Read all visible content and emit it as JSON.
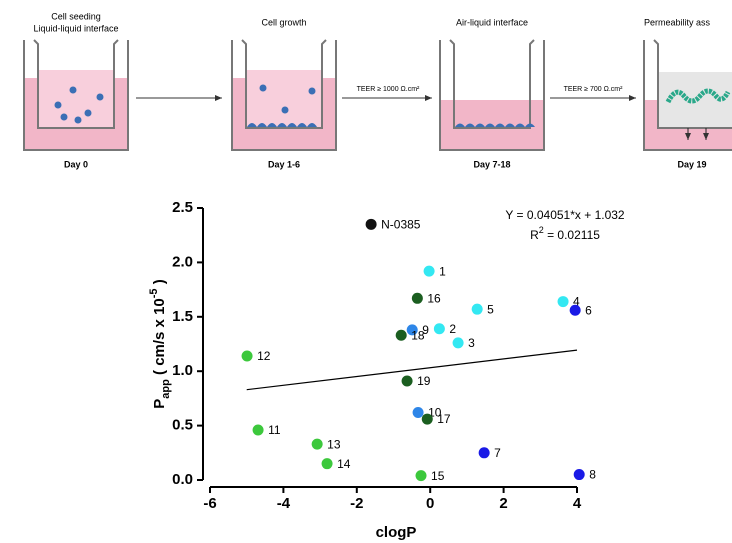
{
  "diagram": {
    "steps": [
      {
        "title": [
          "Cell seeding",
          "Liquid-liquid interface"
        ],
        "day": "Day 0"
      },
      {
        "title": [
          "Cell growth"
        ],
        "day": "Day 1-6"
      },
      {
        "title": [
          "Air-liquid interface"
        ],
        "day": "Day 7-18"
      },
      {
        "title": [
          "Permeability ass"
        ],
        "day": "Day 19"
      }
    ],
    "transitions": [
      "TEER ≥ 1000 Ω.cm²",
      "TEER ≥ 700 Ω.cm²"
    ]
  },
  "chart_data": {
    "type": "scatter",
    "xlabel": "clogP",
    "ylabel": {
      "main": "P",
      "sub": "app",
      "middle": " ( cm/s x 10",
      "sup": "-5",
      "end": " )"
    },
    "annotations": {
      "equation": "Y = 0.04051*x + 1.032",
      "r2": {
        "main": "R",
        "sup": "2",
        "end": " = 0.02115"
      }
    },
    "point_labels": [
      "N-0385",
      "1",
      "16",
      "5",
      "4",
      "6",
      "9",
      "2",
      "18",
      "3",
      "12",
      "19",
      "10",
      "17",
      "11",
      "13",
      "14",
      "7",
      "15",
      "8"
    ],
    "x": [
      -1.61,
      -0.03,
      -0.35,
      1.28,
      3.62,
      3.95,
      -0.49,
      0.25,
      -0.79,
      0.76,
      -4.99,
      -0.63,
      -0.33,
      -0.08,
      -4.69,
      -3.08,
      -2.81,
      1.47,
      -0.25,
      4.06
    ],
    "values": [
      2.35,
      1.92,
      1.67,
      1.57,
      1.64,
      1.56,
      1.38,
      1.39,
      1.33,
      1.26,
      1.14,
      0.91,
      0.62,
      0.56,
      0.46,
      0.33,
      0.15,
      0.25,
      0.04,
      0.05
    ],
    "colors": [
      "#111111",
      "#33e8f2",
      "#1b5e20",
      "#33e8f2",
      "#33e8f2",
      "#1a1ae6",
      "#2e86e8",
      "#33e8f2",
      "#1b5e20",
      "#33e8f2",
      "#3cc83c",
      "#1b5e20",
      "#2e86e8",
      "#1b5e20",
      "#3cc83c",
      "#3cc83c",
      "#3cc83c",
      "#1a1ae6",
      "#3cc83c",
      "#1a1ae6"
    ],
    "fit_line": {
      "x": [
        -5,
        4
      ],
      "y": [
        0.83,
        1.194
      ],
      "color": "#000000"
    },
    "xlim": [
      -6,
      4
    ],
    "xticks": [
      -6,
      -4,
      -2,
      0,
      2,
      4
    ],
    "ylim": [
      0,
      2.5
    ],
    "yticks": [
      {
        "value": 0,
        "label": "0.0"
      },
      0.5,
      {
        "value": 1,
        "label": "1.0"
      },
      1.5,
      {
        "value": 2,
        "label": "2.0"
      },
      2.5
    ]
  }
}
